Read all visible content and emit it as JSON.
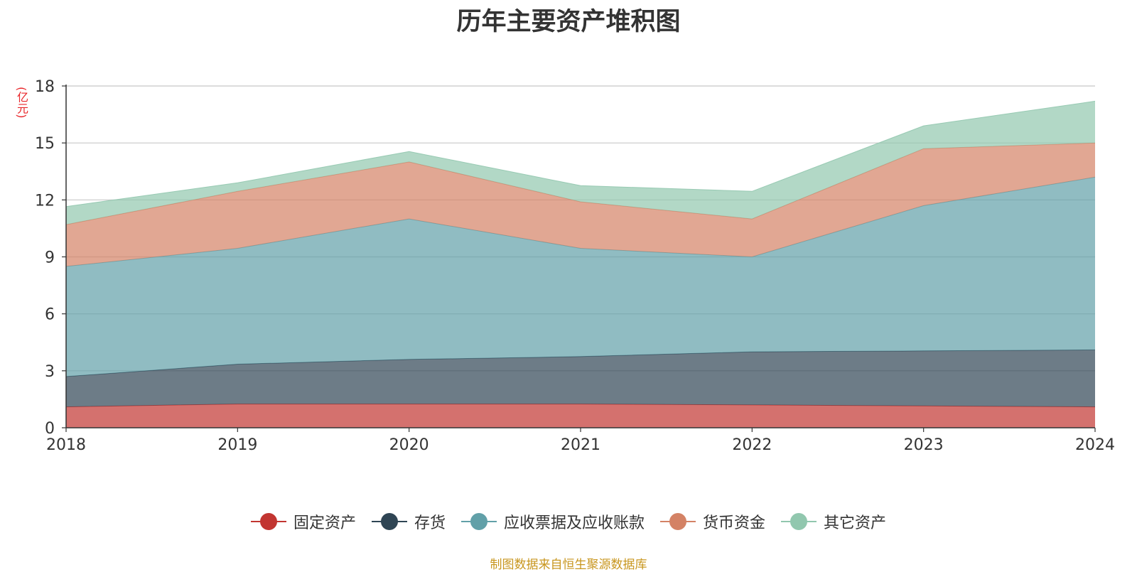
{
  "title": "历年主要资产堆积图",
  "unit": "(亿元)",
  "source_note": "制图数据来自恒生聚源数据库",
  "chart_data": {
    "type": "area",
    "stacked": true,
    "x": [
      "2018",
      "2019",
      "2020",
      "2021",
      "2022",
      "2023",
      "2024"
    ],
    "yticks": [
      "0",
      "3",
      "6",
      "9",
      "12",
      "15",
      "18"
    ],
    "ylim": [
      0,
      18
    ],
    "grid": true,
    "legend_position": "bottom",
    "series": [
      {
        "name": "固定资产",
        "color": "#c23531",
        "values": [
          1.1,
          1.25,
          1.25,
          1.25,
          1.2,
          1.15,
          1.1
        ]
      },
      {
        "name": "存货",
        "color": "#2f4554",
        "values": [
          1.6,
          2.1,
          2.35,
          2.5,
          2.8,
          2.9,
          3.0
        ]
      },
      {
        "name": "应收票据及应收账款",
        "color": "#61a0a8",
        "values": [
          5.8,
          6.1,
          7.4,
          5.7,
          5.0,
          7.65,
          9.1
        ]
      },
      {
        "name": "货币资金",
        "color": "#d48265",
        "values": [
          2.2,
          3.0,
          3.0,
          2.45,
          2.0,
          3.0,
          1.8
        ]
      },
      {
        "name": "其它资产",
        "color": "#91c7ae",
        "values": [
          0.95,
          0.45,
          0.55,
          0.85,
          1.45,
          1.2,
          2.2
        ]
      }
    ]
  }
}
